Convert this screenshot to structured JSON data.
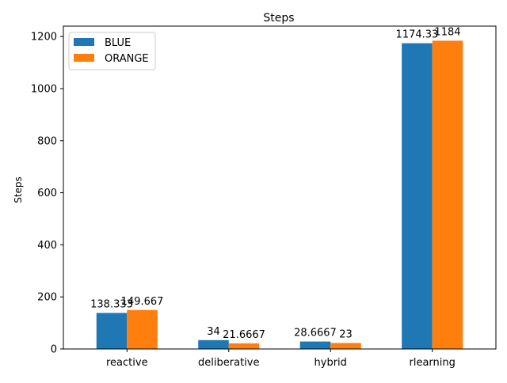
{
  "chart_data": {
    "type": "bar",
    "title": "Steps",
    "xlabel": "",
    "ylabel": "Steps",
    "categories": [
      "reactive",
      "deliberative",
      "hybrid",
      "rlearning"
    ],
    "series": [
      {
        "name": "BLUE",
        "color": "#1f77b4",
        "values": [
          138.333,
          34,
          28.6667,
          1174.33
        ],
        "labels": [
          "138.333",
          "34",
          "28.6667",
          "1174.33"
        ]
      },
      {
        "name": "ORANGE",
        "color": "#ff7f0e",
        "values": [
          149.667,
          21.6667,
          23,
          1184
        ],
        "labels": [
          "149.667",
          "21.6667",
          "23",
          "1184"
        ]
      }
    ],
    "ylim": [
      0,
      1240
    ],
    "yticks": [
      0,
      200,
      400,
      600,
      800,
      1000,
      1200
    ],
    "grid": false,
    "legend_position": "top-left"
  }
}
